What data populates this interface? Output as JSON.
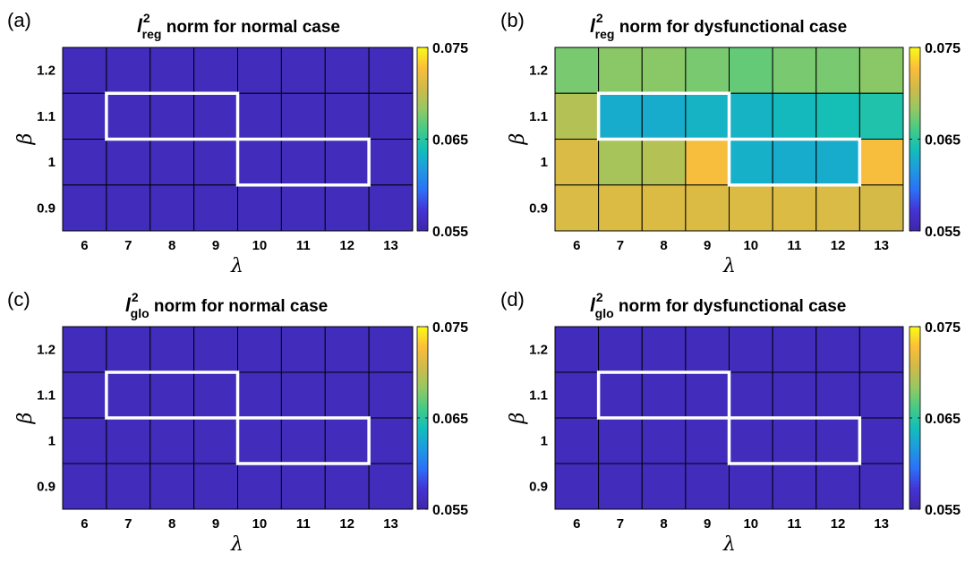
{
  "colormap": [
    "#3e26a8",
    "#4433d4",
    "#2c70f8",
    "#1e9ae0",
    "#13beb9",
    "#45cb86",
    "#96c862",
    "#d0ba49",
    "#fbbe3a",
    "#f9fb15"
  ],
  "colorbar": {
    "min": 0.055,
    "max": 0.075,
    "tick_values": [
      0.075,
      0.065,
      0.055
    ],
    "tick_labels": [
      "0.075",
      "0.065",
      "0.055"
    ]
  },
  "chart_data": [
    {
      "type": "heatmap",
      "panel": "(a)",
      "title": {
        "symbol": "l",
        "sub": "reg",
        "sup": "2",
        "text": " norm for normal case"
      },
      "xlabel": "λ",
      "ylabel": "β",
      "x": [
        6,
        7,
        8,
        9,
        10,
        11,
        12,
        13
      ],
      "y": [
        1.2,
        1.1,
        1,
        0.9
      ],
      "x_tick_labels": [
        "6",
        "7",
        "8",
        "9",
        "10",
        "11",
        "12",
        "13"
      ],
      "y_tick_labels": [
        "1.2",
        "1.1",
        "1",
        "0.9"
      ],
      "clim": [
        0.055,
        0.075
      ],
      "z": [
        [
          0.056,
          0.056,
          0.056,
          0.056,
          0.056,
          0.056,
          0.056,
          0.056
        ],
        [
          0.056,
          0.056,
          0.056,
          0.056,
          0.056,
          0.056,
          0.056,
          0.056
        ],
        [
          0.056,
          0.056,
          0.056,
          0.056,
          0.056,
          0.056,
          0.056,
          0.056
        ],
        [
          0.056,
          0.056,
          0.056,
          0.056,
          0.056,
          0.056,
          0.056,
          0.056
        ]
      ],
      "highlight_regions": [
        {
          "lambda": [
            7,
            9
          ],
          "beta": 1.1
        },
        {
          "lambda": [
            10,
            12
          ],
          "beta": 1
        }
      ]
    },
    {
      "type": "heatmap",
      "panel": "(b)",
      "title": {
        "symbol": "l",
        "sub": "reg",
        "sup": "2",
        "text": " norm for dysfunctional case"
      },
      "xlabel": "λ",
      "ylabel": "β",
      "x": [
        6,
        7,
        8,
        9,
        10,
        11,
        12,
        13
      ],
      "y": [
        1.2,
        1.1,
        1,
        0.9
      ],
      "x_tick_labels": [
        "6",
        "7",
        "8",
        "9",
        "10",
        "11",
        "12",
        "13"
      ],
      "y_tick_labels": [
        "1.2",
        "1.1",
        "1",
        "0.9"
      ],
      "clim": [
        0.055,
        0.075
      ],
      "z": [
        [
          0.0675,
          0.068,
          0.068,
          0.0675,
          0.067,
          0.0675,
          0.0675,
          0.068
        ],
        [
          0.0695,
          0.0628,
          0.0628,
          0.0632,
          0.0632,
          0.0636,
          0.064,
          0.0645
        ],
        [
          0.071,
          0.069,
          0.0695,
          0.0725,
          0.063,
          0.0628,
          0.0628,
          0.0725
        ],
        [
          0.071,
          0.0712,
          0.0712,
          0.0712,
          0.0712,
          0.0712,
          0.071,
          0.0708
        ]
      ],
      "highlight_regions": [
        {
          "lambda": [
            7,
            9
          ],
          "beta": 1.1
        },
        {
          "lambda": [
            10,
            12
          ],
          "beta": 1
        }
      ]
    },
    {
      "type": "heatmap",
      "panel": "(c)",
      "title": {
        "symbol": "l",
        "sub": "glo",
        "sup": "2",
        "text": " norm for normal case"
      },
      "xlabel": "λ",
      "ylabel": "β",
      "x": [
        6,
        7,
        8,
        9,
        10,
        11,
        12,
        13
      ],
      "y": [
        1.2,
        1.1,
        1,
        0.9
      ],
      "x_tick_labels": [
        "6",
        "7",
        "8",
        "9",
        "10",
        "11",
        "12",
        "13"
      ],
      "y_tick_labels": [
        "1.2",
        "1.1",
        "1",
        "0.9"
      ],
      "clim": [
        0.055,
        0.075
      ],
      "z": [
        [
          0.056,
          0.056,
          0.056,
          0.056,
          0.056,
          0.056,
          0.056,
          0.056
        ],
        [
          0.056,
          0.056,
          0.056,
          0.056,
          0.056,
          0.056,
          0.056,
          0.056
        ],
        [
          0.056,
          0.056,
          0.056,
          0.056,
          0.056,
          0.056,
          0.056,
          0.056
        ],
        [
          0.056,
          0.056,
          0.056,
          0.056,
          0.056,
          0.056,
          0.056,
          0.056
        ]
      ],
      "highlight_regions": [
        {
          "lambda": [
            7,
            9
          ],
          "beta": 1.1
        },
        {
          "lambda": [
            10,
            12
          ],
          "beta": 1
        }
      ]
    },
    {
      "type": "heatmap",
      "panel": "(d)",
      "title": {
        "symbol": "l",
        "sub": "glo",
        "sup": "2",
        "text": " norm for dysfunctional case"
      },
      "xlabel": "λ",
      "ylabel": "β",
      "x": [
        6,
        7,
        8,
        9,
        10,
        11,
        12,
        13
      ],
      "y": [
        1.2,
        1.1,
        1,
        0.9
      ],
      "x_tick_labels": [
        "6",
        "7",
        "8",
        "9",
        "10",
        "11",
        "12",
        "13"
      ],
      "y_tick_labels": [
        "1.2",
        "1.1",
        "1",
        "0.9"
      ],
      "clim": [
        0.055,
        0.075
      ],
      "z": [
        [
          0.056,
          0.056,
          0.056,
          0.056,
          0.056,
          0.056,
          0.056,
          0.056
        ],
        [
          0.056,
          0.056,
          0.056,
          0.056,
          0.056,
          0.056,
          0.056,
          0.056
        ],
        [
          0.056,
          0.056,
          0.056,
          0.056,
          0.056,
          0.056,
          0.056,
          0.056
        ],
        [
          0.056,
          0.056,
          0.056,
          0.056,
          0.056,
          0.056,
          0.056,
          0.056
        ]
      ],
      "highlight_regions": [
        {
          "lambda": [
            7,
            9
          ],
          "beta": 1.1
        },
        {
          "lambda": [
            10,
            12
          ],
          "beta": 1
        }
      ]
    }
  ]
}
